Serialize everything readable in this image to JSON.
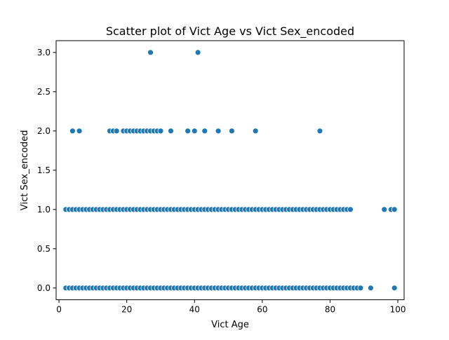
{
  "chart_data": {
    "type": "scatter",
    "title": "Scatter plot of Vict Age vs Vict Sex_encoded",
    "xlabel": "Vict Age",
    "ylabel": "Vict Sex_encoded",
    "xlim": [
      -0.85,
      101.85
    ],
    "ylim": [
      -0.15,
      3.15
    ],
    "xticks": [
      0,
      20,
      40,
      60,
      80,
      100
    ],
    "yticks": [
      0.0,
      0.5,
      1.0,
      1.5,
      2.0,
      2.5,
      3.0
    ],
    "xtick_labels": [
      "0",
      "20",
      "40",
      "60",
      "80",
      "100"
    ],
    "ytick_labels": [
      "0.0",
      "0.5",
      "1.0",
      "1.5",
      "2.0",
      "2.5",
      "3.0"
    ],
    "grid": false,
    "marker_color": "#1f77b4",
    "series": [
      {
        "x": [
          2,
          3,
          4,
          5,
          6,
          7,
          8,
          9,
          10,
          11,
          12,
          13,
          14,
          15,
          16,
          17,
          18,
          19,
          20,
          21,
          22,
          23,
          24,
          25,
          26,
          27,
          28,
          29,
          30,
          31,
          32,
          33,
          34,
          35,
          36,
          37,
          38,
          39,
          40,
          41,
          42,
          43,
          44,
          45,
          46,
          47,
          48,
          49,
          50,
          51,
          52,
          53,
          54,
          55,
          56,
          57,
          58,
          59,
          60,
          61,
          62,
          63,
          64,
          65,
          66,
          67,
          68,
          69,
          70,
          71,
          72,
          73,
          74,
          75,
          76,
          77,
          78,
          79,
          80,
          81,
          82,
          83,
          84,
          85,
          86,
          87,
          88,
          89,
          92,
          99,
          2,
          3,
          4,
          5,
          6,
          7,
          8,
          9,
          10,
          11,
          12,
          13,
          14,
          15,
          16,
          17,
          18,
          19,
          20,
          21,
          22,
          23,
          24,
          25,
          26,
          27,
          28,
          29,
          30,
          31,
          32,
          33,
          34,
          35,
          36,
          37,
          38,
          39,
          40,
          41,
          42,
          43,
          44,
          45,
          46,
          47,
          48,
          49,
          50,
          51,
          52,
          53,
          54,
          55,
          56,
          57,
          58,
          59,
          60,
          61,
          62,
          63,
          64,
          65,
          66,
          67,
          68,
          69,
          70,
          71,
          72,
          73,
          74,
          75,
          76,
          77,
          78,
          79,
          80,
          81,
          82,
          83,
          84,
          85,
          86,
          96,
          98,
          99,
          4,
          6,
          15,
          16,
          17,
          19,
          20,
          21,
          22,
          23,
          24,
          25,
          26,
          27,
          28,
          29,
          30,
          33,
          38,
          40,
          43,
          47,
          51,
          58,
          77,
          27,
          41
        ],
        "y": [
          0,
          0,
          0,
          0,
          0,
          0,
          0,
          0,
          0,
          0,
          0,
          0,
          0,
          0,
          0,
          0,
          0,
          0,
          0,
          0,
          0,
          0,
          0,
          0,
          0,
          0,
          0,
          0,
          0,
          0,
          0,
          0,
          0,
          0,
          0,
          0,
          0,
          0,
          0,
          0,
          0,
          0,
          0,
          0,
          0,
          0,
          0,
          0,
          0,
          0,
          0,
          0,
          0,
          0,
          0,
          0,
          0,
          0,
          0,
          0,
          0,
          0,
          0,
          0,
          0,
          0,
          0,
          0,
          0,
          0,
          0,
          0,
          0,
          0,
          0,
          0,
          0,
          0,
          0,
          0,
          0,
          0,
          0,
          0,
          0,
          0,
          0,
          0,
          0,
          0,
          1,
          1,
          1,
          1,
          1,
          1,
          1,
          1,
          1,
          1,
          1,
          1,
          1,
          1,
          1,
          1,
          1,
          1,
          1,
          1,
          1,
          1,
          1,
          1,
          1,
          1,
          1,
          1,
          1,
          1,
          1,
          1,
          1,
          1,
          1,
          1,
          1,
          1,
          1,
          1,
          1,
          1,
          1,
          1,
          1,
          1,
          1,
          1,
          1,
          1,
          1,
          1,
          1,
          1,
          1,
          1,
          1,
          1,
          1,
          1,
          1,
          1,
          1,
          1,
          1,
          1,
          1,
          1,
          1,
          1,
          1,
          1,
          1,
          1,
          1,
          1,
          1,
          1,
          1,
          1,
          1,
          1,
          1,
          1,
          1,
          1,
          1,
          1,
          2,
          2,
          2,
          2,
          2,
          2,
          2,
          2,
          2,
          2,
          2,
          2,
          2,
          2,
          2,
          2,
          2,
          2,
          2,
          2,
          2,
          2,
          2,
          2,
          2,
          3,
          3
        ]
      }
    ]
  }
}
